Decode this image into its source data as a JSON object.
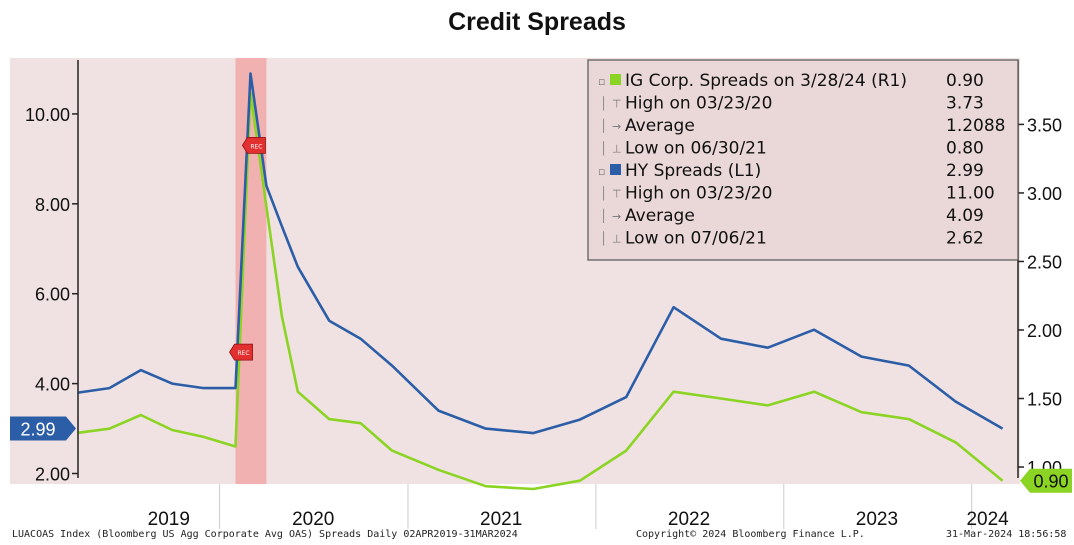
{
  "title": "Credit Spreads",
  "chart_data": {
    "type": "line",
    "title": "Credit Spreads",
    "x_tick_labels": [
      "2019",
      "2020",
      "2021",
      "2022",
      "2023",
      "2024"
    ],
    "left_axis": {
      "ticks": [
        "2.00",
        "4.00",
        "6.00",
        "8.00",
        "10.00"
      ],
      "ylim": [
        1.9,
        11.2
      ]
    },
    "right_axis": {
      "ticks": [
        "1.00",
        "1.50",
        "2.00",
        "2.50",
        "3.00",
        "3.50"
      ],
      "ylim": [
        0.92,
        3.97
      ]
    },
    "recession_shading": {
      "label": "REC",
      "start": "2020-02",
      "end": "2020-04"
    },
    "legend_placement": "top-right",
    "legend": [
      {
        "label": "IG Corp. Spreads on 3/28/24 (R1)",
        "value": "0.90",
        "marker": "square",
        "color": "#8bd424"
      },
      {
        "label": "High on 03/23/20",
        "value": "3.73",
        "marker": "high"
      },
      {
        "label": "Average",
        "value": "1.2088",
        "marker": "avg"
      },
      {
        "label": "Low on 06/30/21",
        "value": "0.80",
        "marker": "low"
      },
      {
        "label": "HY Spreads (L1)",
        "value": "2.99",
        "marker": "square",
        "color": "#2c5ea7"
      },
      {
        "label": "High on 03/23/20",
        "value": "11.00",
        "marker": "high"
      },
      {
        "label": "Average",
        "value": "4.09",
        "marker": "avg"
      },
      {
        "label": "Low on 07/06/21",
        "value": "2.62",
        "marker": "low"
      }
    ],
    "series": [
      {
        "name": "HY Spreads",
        "axis": "left",
        "color": "#2c5ea7",
        "x": [
          "2019-04",
          "2019-06",
          "2019-08",
          "2019-10",
          "2019-12",
          "2020-02",
          "2020-03",
          "2020-04",
          "2020-05",
          "2020-06",
          "2020-08",
          "2020-10",
          "2020-12",
          "2021-03",
          "2021-06",
          "2021-09",
          "2021-12",
          "2022-03",
          "2022-06",
          "2022-09",
          "2022-12",
          "2023-03",
          "2023-06",
          "2023-09",
          "2023-12",
          "2024-03"
        ],
        "values": [
          3.8,
          3.9,
          4.3,
          4.0,
          3.9,
          3.9,
          10.9,
          8.4,
          7.5,
          6.6,
          5.4,
          5.0,
          4.4,
          3.4,
          3.0,
          2.9,
          3.2,
          3.7,
          5.7,
          5.0,
          4.8,
          5.2,
          4.6,
          4.4,
          3.6,
          3.0
        ]
      },
      {
        "name": "IG Corp. Spreads",
        "axis": "right",
        "color": "#8bd424",
        "x": [
          "2019-04",
          "2019-06",
          "2019-08",
          "2019-10",
          "2019-12",
          "2020-02",
          "2020-03",
          "2020-04",
          "2020-05",
          "2020-06",
          "2020-08",
          "2020-10",
          "2020-12",
          "2021-03",
          "2021-06",
          "2021-09",
          "2021-12",
          "2022-03",
          "2022-06",
          "2022-09",
          "2022-12",
          "2023-03",
          "2023-06",
          "2023-09",
          "2023-12",
          "2024-03"
        ],
        "values": [
          1.25,
          1.28,
          1.38,
          1.27,
          1.22,
          1.15,
          3.73,
          2.9,
          2.1,
          1.55,
          1.35,
          1.32,
          1.12,
          0.98,
          0.86,
          0.84,
          0.9,
          1.12,
          1.55,
          1.5,
          1.45,
          1.55,
          1.4,
          1.35,
          1.18,
          0.9
        ]
      }
    ],
    "left_last_value": {
      "label": "2.99",
      "color": "#2c5ea7"
    },
    "right_last_value": {
      "label": "0.90",
      "color": "#8bd424"
    },
    "footer": {
      "left": "LUACOAS Index (Bloomberg US Agg Corporate Avg OAS) Spreads  Daily 02APR2019-31MAR2024",
      "center": "Copyright© 2024 Bloomberg Finance L.P.",
      "right": "31-Mar-2024 18:56:58"
    }
  }
}
